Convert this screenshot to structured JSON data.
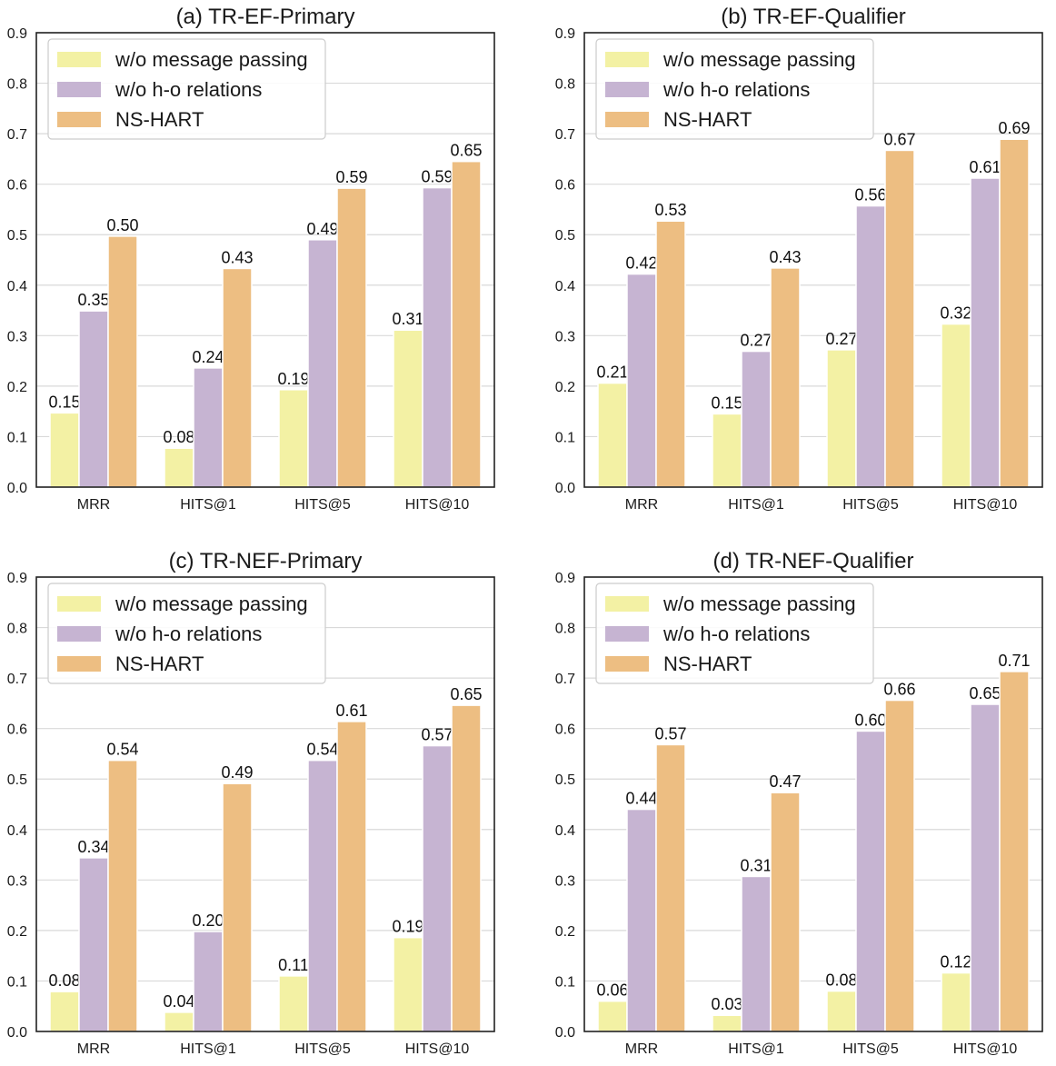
{
  "figure": {
    "colors": {
      "w/o message passing": "#f3f1a4",
      "w/o h-o relations": "#c6b4d2",
      "NS-HART": "#edbe82"
    }
  },
  "chart_data": [
    {
      "type": "bar",
      "title": "(a) TR-EF-Primary",
      "categories": [
        "MRR",
        "HITS@1",
        "HITS@5",
        "HITS@10"
      ],
      "ylim": [
        0,
        0.9
      ],
      "yticks": [
        "0.0",
        "0.1",
        "0.2",
        "0.3",
        "0.4",
        "0.5",
        "0.6",
        "0.7",
        "0.8",
        "0.9"
      ],
      "grid": true,
      "legend": "top-left",
      "series": [
        {
          "name": "w/o message passing",
          "values": [
            0.147,
            0.077,
            0.193,
            0.311
          ],
          "labels": [
            "0.15",
            "0.08",
            "0.19",
            "0.31"
          ]
        },
        {
          "name": "w/o h-o relations",
          "values": [
            0.349,
            0.236,
            0.49,
            0.593
          ],
          "labels": [
            "0.35",
            "0.24",
            "0.49",
            "0.59"
          ]
        },
        {
          "name": "NS-HART",
          "values": [
            0.497,
            0.433,
            0.592,
            0.645
          ],
          "labels": [
            "0.50",
            "0.43",
            "0.59",
            "0.65"
          ]
        }
      ]
    },
    {
      "type": "bar",
      "title": "(b) TR-EF-Qualifier",
      "categories": [
        "MRR",
        "HITS@1",
        "HITS@5",
        "HITS@10"
      ],
      "ylim": [
        0,
        0.9
      ],
      "yticks": [
        "0.0",
        "0.1",
        "0.2",
        "0.3",
        "0.4",
        "0.5",
        "0.6",
        "0.7",
        "0.8",
        "0.9"
      ],
      "grid": true,
      "legend": "top-left",
      "series": [
        {
          "name": "w/o message passing",
          "values": [
            0.206,
            0.145,
            0.272,
            0.323
          ],
          "labels": [
            "0.21",
            "0.15",
            "0.27",
            "0.32"
          ]
        },
        {
          "name": "w/o h-o relations",
          "values": [
            0.422,
            0.269,
            0.557,
            0.612
          ],
          "labels": [
            "0.42",
            "0.27",
            "0.56",
            "0.61"
          ]
        },
        {
          "name": "NS-HART",
          "values": [
            0.527,
            0.434,
            0.667,
            0.689
          ],
          "labels": [
            "0.53",
            "0.43",
            "0.67",
            "0.69"
          ]
        }
      ]
    },
    {
      "type": "bar",
      "title": "(c) TR-NEF-Primary",
      "categories": [
        "MRR",
        "HITS@1",
        "HITS@5",
        "HITS@10"
      ],
      "ylim": [
        0,
        0.9
      ],
      "yticks": [
        "0.0",
        "0.1",
        "0.2",
        "0.3",
        "0.4",
        "0.5",
        "0.6",
        "0.7",
        "0.8",
        "0.9"
      ],
      "grid": true,
      "legend": "top-left",
      "series": [
        {
          "name": "w/o message passing",
          "values": [
            0.079,
            0.038,
            0.11,
            0.186
          ],
          "labels": [
            "0.08",
            "0.04",
            "0.11",
            "0.19"
          ]
        },
        {
          "name": "w/o h-o relations",
          "values": [
            0.344,
            0.198,
            0.537,
            0.566
          ],
          "labels": [
            "0.34",
            "0.20",
            "0.54",
            "0.57"
          ]
        },
        {
          "name": "NS-HART",
          "values": [
            0.537,
            0.491,
            0.614,
            0.646
          ],
          "labels": [
            "0.54",
            "0.49",
            "0.61",
            "0.65"
          ]
        }
      ]
    },
    {
      "type": "bar",
      "title": "(d) TR-NEF-Qualifier",
      "categories": [
        "MRR",
        "HITS@1",
        "HITS@5",
        "HITS@10"
      ],
      "ylim": [
        0,
        0.9
      ],
      "yticks": [
        "0.0",
        "0.1",
        "0.2",
        "0.3",
        "0.4",
        "0.5",
        "0.6",
        "0.7",
        "0.8",
        "0.9"
      ],
      "grid": true,
      "legend": "top-left",
      "series": [
        {
          "name": "w/o message passing",
          "values": [
            0.06,
            0.032,
            0.08,
            0.116
          ],
          "labels": [
            "0.06",
            "0.03",
            "0.08",
            "0.12"
          ]
        },
        {
          "name": "w/o h-o relations",
          "values": [
            0.44,
            0.307,
            0.595,
            0.648
          ],
          "labels": [
            "0.44",
            "0.31",
            "0.60",
            "0.65"
          ]
        },
        {
          "name": "NS-HART",
          "values": [
            0.568,
            0.473,
            0.656,
            0.713
          ],
          "labels": [
            "0.57",
            "0.47",
            "0.66",
            "0.71"
          ]
        }
      ]
    }
  ]
}
